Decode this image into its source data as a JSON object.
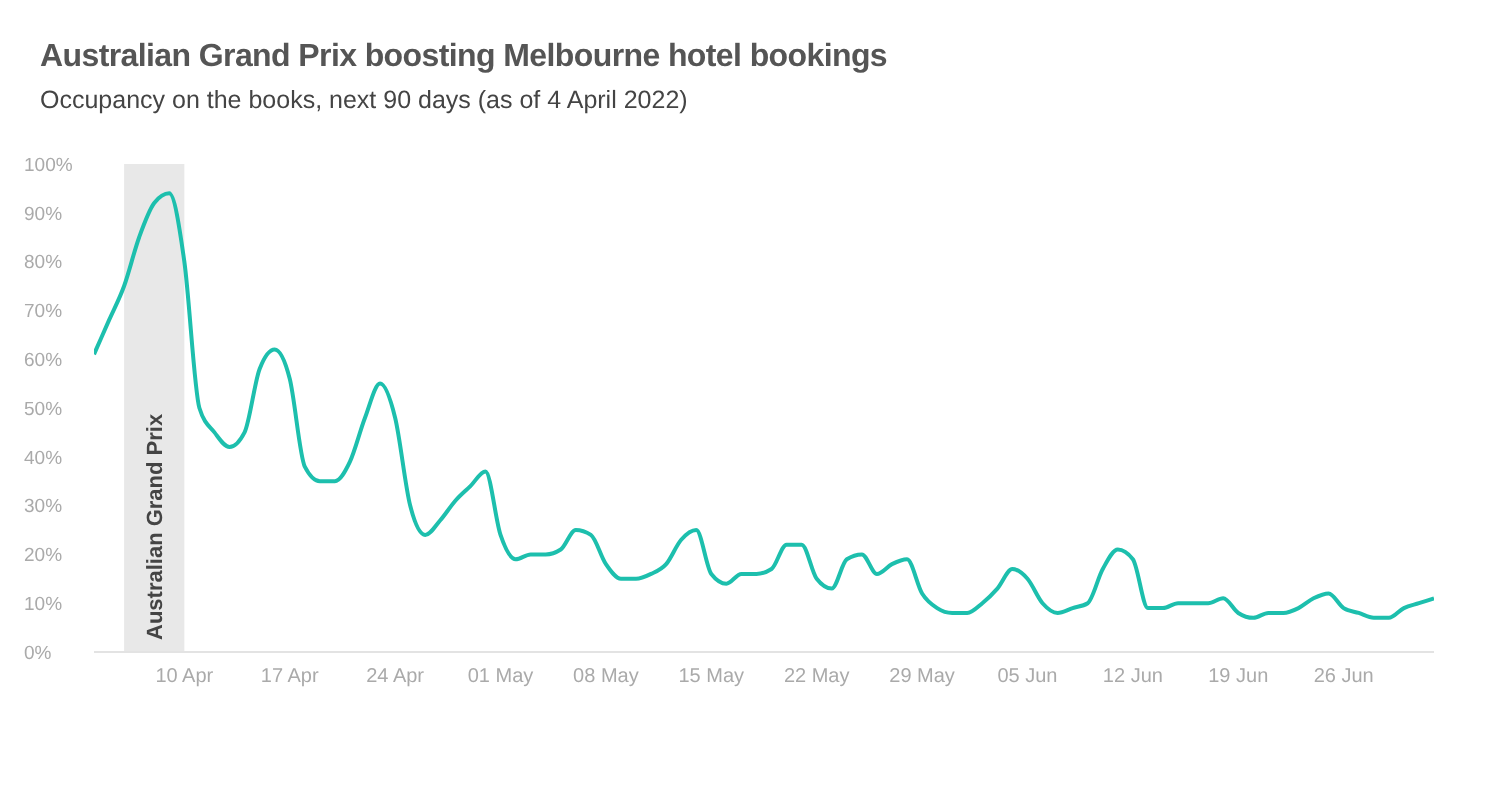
{
  "chart_data": {
    "type": "line",
    "title": "Australian Grand Prix boosting Melbourne hotel bookings",
    "subtitle": "Occupancy on the books, next 90 days (as of 4 April 2022)",
    "x": [
      "2022-04-04",
      "2022-04-05",
      "2022-04-06",
      "2022-04-07",
      "2022-04-08",
      "2022-04-09",
      "2022-04-10",
      "2022-04-11",
      "2022-04-12",
      "2022-04-13",
      "2022-04-14",
      "2022-04-15",
      "2022-04-16",
      "2022-04-17",
      "2022-04-18",
      "2022-04-19",
      "2022-04-20",
      "2022-04-21",
      "2022-04-22",
      "2022-04-23",
      "2022-04-24",
      "2022-04-25",
      "2022-04-26",
      "2022-04-27",
      "2022-04-28",
      "2022-04-29",
      "2022-04-30",
      "2022-05-01",
      "2022-05-02",
      "2022-05-03",
      "2022-05-04",
      "2022-05-05",
      "2022-05-06",
      "2022-05-07",
      "2022-05-08",
      "2022-05-09",
      "2022-05-10",
      "2022-05-11",
      "2022-05-12",
      "2022-05-13",
      "2022-05-14",
      "2022-05-15",
      "2022-05-16",
      "2022-05-17",
      "2022-05-18",
      "2022-05-19",
      "2022-05-20",
      "2022-05-21",
      "2022-05-22",
      "2022-05-23",
      "2022-05-24",
      "2022-05-25",
      "2022-05-26",
      "2022-05-27",
      "2022-05-28",
      "2022-05-29",
      "2022-05-30",
      "2022-05-31",
      "2022-06-01",
      "2022-06-02",
      "2022-06-03",
      "2022-06-04",
      "2022-06-05",
      "2022-06-06",
      "2022-06-07",
      "2022-06-08",
      "2022-06-09",
      "2022-06-10",
      "2022-06-11",
      "2022-06-12",
      "2022-06-13",
      "2022-06-14",
      "2022-06-15",
      "2022-06-16",
      "2022-06-17",
      "2022-06-18",
      "2022-06-19",
      "2022-06-20",
      "2022-06-21",
      "2022-06-22",
      "2022-06-23",
      "2022-06-24",
      "2022-06-25",
      "2022-06-26",
      "2022-06-27",
      "2022-06-28",
      "2022-06-29",
      "2022-06-30",
      "2022-07-01",
      "2022-07-02"
    ],
    "series": [
      {
        "color": "#1dbfad",
        "values": [
          61,
          68,
          75,
          85,
          92,
          94,
          80,
          50,
          45,
          42,
          45,
          58,
          62,
          56,
          38,
          35,
          35,
          39,
          48,
          55,
          48,
          30,
          24,
          27,
          31,
          34,
          37,
          24,
          19,
          20,
          20,
          21,
          25,
          24,
          18,
          15,
          15,
          16,
          18,
          23,
          25,
          16,
          14,
          16,
          16,
          17,
          22,
          22,
          15,
          13,
          19,
          20,
          16,
          18,
          19,
          12,
          9,
          8,
          8,
          10,
          13,
          17,
          15,
          10,
          8,
          9,
          10,
          17,
          21,
          19,
          9,
          9,
          10,
          10,
          10,
          11,
          8,
          7,
          8,
          8,
          9,
          11,
          12,
          9,
          8,
          7,
          7,
          9,
          10,
          11
        ]
      }
    ],
    "xticks": [
      {
        "value": "2022-04-10",
        "label": "10 Apr"
      },
      {
        "value": "2022-04-17",
        "label": "17 Apr"
      },
      {
        "value": "2022-04-24",
        "label": "24 Apr"
      },
      {
        "value": "2022-05-01",
        "label": "01 May"
      },
      {
        "value": "2022-05-08",
        "label": "08 May"
      },
      {
        "value": "2022-05-15",
        "label": "15 May"
      },
      {
        "value": "2022-05-22",
        "label": "22 May"
      },
      {
        "value": "2022-05-29",
        "label": "29 May"
      },
      {
        "value": "2022-06-05",
        "label": "05 Jun"
      },
      {
        "value": "2022-06-12",
        "label": "12 Jun"
      },
      {
        "value": "2022-06-19",
        "label": "19 Jun"
      },
      {
        "value": "2022-06-26",
        "label": "26 Jun"
      }
    ],
    "xlim": [
      "2022-04-04",
      "2022-07-02"
    ],
    "ylim": [
      0,
      100
    ],
    "yticks": [
      {
        "value": 0,
        "label": "0%"
      },
      {
        "value": 10,
        "label": "10%"
      },
      {
        "value": 20,
        "label": "20%"
      },
      {
        "value": 30,
        "label": "30%"
      },
      {
        "value": 40,
        "label": "40%"
      },
      {
        "value": 50,
        "label": "50%"
      },
      {
        "value": 60,
        "label": "60%"
      },
      {
        "value": 70,
        "label": "70%"
      },
      {
        "value": 80,
        "label": "80%"
      },
      {
        "value": 90,
        "label": "90%"
      },
      {
        "value": 100,
        "label": "100%"
      }
    ],
    "bands": [
      {
        "axis": "x",
        "from": "2022-04-06",
        "to": "2022-04-10",
        "label": "Australian Grand Prix",
        "color": "#e8e8e8"
      }
    ],
    "marker": "none",
    "line_style": "solid",
    "grid": false,
    "legend": false
  }
}
